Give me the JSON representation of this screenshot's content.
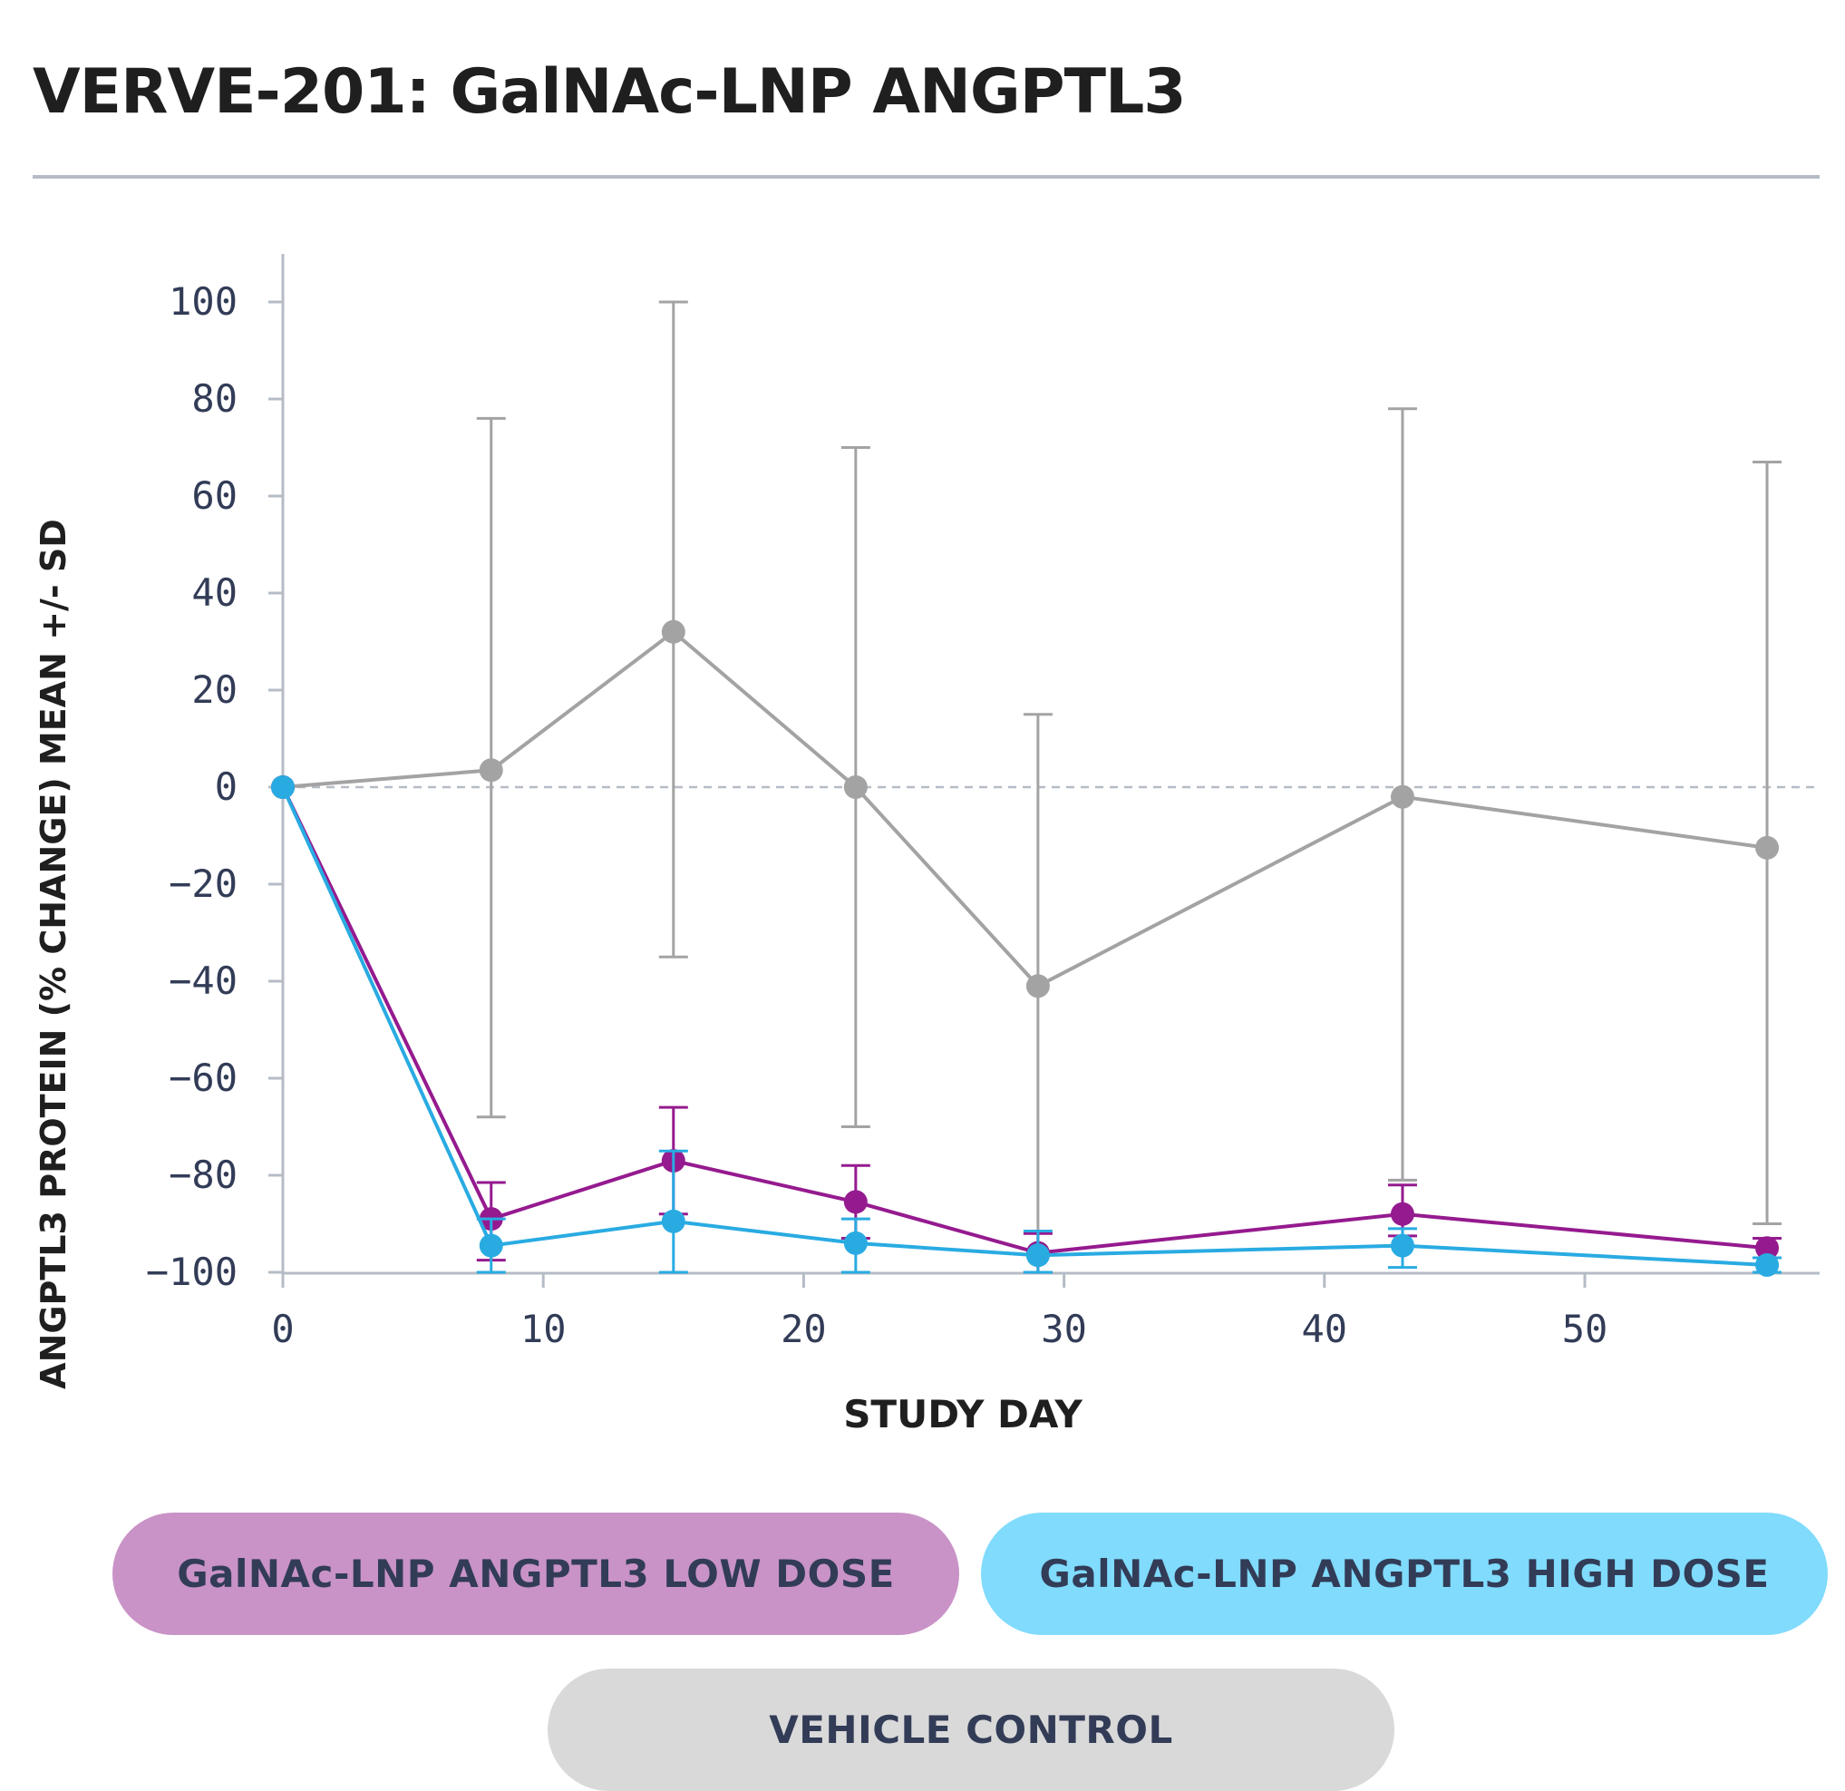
{
  "title": "VERVE-201: GalNAc-LNP ANGPTL3",
  "chart_data": {
    "type": "line",
    "xlabel": "STUDY DAY",
    "ylabel": "ANGPTL3 PROTEIN (% CHANGE) MEAN +/- SD",
    "xlim": [
      0,
      59
    ],
    "ylim": [
      -100,
      110
    ],
    "xticks": [
      0,
      10,
      20,
      30,
      40,
      50
    ],
    "yticks": [
      100,
      80,
      60,
      40,
      20,
      0,
      -20,
      -40,
      -60,
      -80,
      -100
    ],
    "reference_line": 0,
    "legend_position": "bottom",
    "series": [
      {
        "name": "VEHICLE CONTROL",
        "color": "#a3a3a3",
        "x": [
          0,
          8,
          15,
          22,
          29,
          43,
          57
        ],
        "y": [
          0,
          3.5,
          32,
          0,
          -41,
          -2,
          -12.5
        ],
        "err_low": [
          null,
          -68,
          -35,
          -70,
          -100,
          -81,
          -90
        ],
        "err_high": [
          null,
          76,
          100,
          70,
          15,
          78,
          67
        ]
      },
      {
        "name": "GalNAc-LNP ANGPTL3 LOW DOSE",
        "color": "#951a8f",
        "x": [
          0,
          8,
          15,
          22,
          29,
          43,
          57
        ],
        "y": [
          0,
          -89,
          -77,
          -85.5,
          -96,
          -88,
          -95
        ],
        "err_low": [
          null,
          -97.5,
          -88,
          -93,
          -100,
          -92.5,
          -97
        ],
        "err_high": [
          null,
          -81.5,
          -66,
          -78,
          -92,
          -82,
          -93
        ]
      },
      {
        "name": "GalNAc-LNP ANGPTL3 HIGH DOSE",
        "color": "#29abe2",
        "x": [
          0,
          8,
          15,
          22,
          29,
          43,
          57
        ],
        "y": [
          0,
          -94.5,
          -89.5,
          -94,
          -96.5,
          -94.5,
          -98.5
        ],
        "err_low": [
          null,
          -100,
          -100,
          -100,
          -100,
          -99,
          -100
        ],
        "err_high": [
          null,
          -89,
          -75,
          -89,
          -91.5,
          -91,
          -97
        ]
      }
    ]
  },
  "legend": {
    "low_dose": {
      "label": "GalNAc-LNP ANGPTL3 LOW DOSE",
      "color": "#c993c7"
    },
    "high_dose": {
      "label": "GalNAc-LNP ANGPTL3 HIGH DOSE",
      "color": "#80dbfd"
    },
    "vehicle": {
      "label": "VEHICLE CONTROL",
      "color": "#d9d9d9"
    }
  }
}
